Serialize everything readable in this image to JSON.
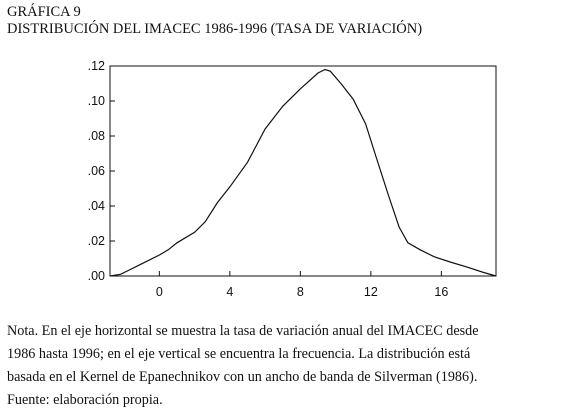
{
  "header": {
    "label": "GRÁFICA 9",
    "title": "DISTRIBUCIÓN DEL IMACEC 1986-1996 (TASA DE VARIACIÓN)"
  },
  "chart_data": {
    "type": "line",
    "title": "DISTRIBUCIÓN DEL IMACEC 1986-1996 (TASA DE VARIACIÓN)",
    "xlabel": "",
    "ylabel": "",
    "xlim": [
      -2.8,
      19.1
    ],
    "ylim": [
      0,
      0.12
    ],
    "grid": false,
    "legend": "none",
    "x_ticks": [
      {
        "value": 0,
        "label": "0"
      },
      {
        "value": 4,
        "label": "4"
      },
      {
        "value": 8,
        "label": "8"
      },
      {
        "value": 12,
        "label": "12"
      },
      {
        "value": 16,
        "label": "16"
      }
    ],
    "y_ticks": [
      {
        "value": 0.0,
        "label": ".00"
      },
      {
        "value": 0.02,
        "label": ".02"
      },
      {
        "value": 0.04,
        "label": ".04"
      },
      {
        "value": 0.06,
        "label": ".06"
      },
      {
        "value": 0.08,
        "label": ".08"
      },
      {
        "value": 0.1,
        "label": ".10"
      },
      {
        "value": 0.12,
        "label": ".12"
      }
    ],
    "series": [
      {
        "color": "#111111",
        "x": [
          -2.8,
          -2.2,
          -1.0,
          0.0,
          0.5,
          1.0,
          2.0,
          2.6,
          3.3,
          4.0,
          5.0,
          6.0,
          7.0,
          8.0,
          9.0,
          9.4,
          9.7,
          10.3,
          11.0,
          11.7,
          12.3,
          13.0,
          13.6,
          14.1,
          14.8,
          15.6,
          16.5,
          17.5,
          18.4,
          19.1
        ],
        "y": [
          0.0,
          0.001,
          0.007,
          0.012,
          0.015,
          0.019,
          0.025,
          0.031,
          0.042,
          0.051,
          0.065,
          0.084,
          0.097,
          0.107,
          0.116,
          0.118,
          0.117,
          0.11,
          0.101,
          0.087,
          0.068,
          0.046,
          0.028,
          0.019,
          0.015,
          0.011,
          0.008,
          0.005,
          0.002,
          0.0
        ]
      }
    ]
  },
  "note": {
    "lines": [
      "Nota. En el eje horizontal se muestra la tasa de variación anual del IMACEC desde",
      "1986 hasta 1996; en el eje vertical se encuentra la frecuencia. La distribución está",
      "basada en el Kernel de Epanechnikov con un ancho de banda de Silverman (1986).",
      "Fuente: elaboración propia."
    ]
  }
}
